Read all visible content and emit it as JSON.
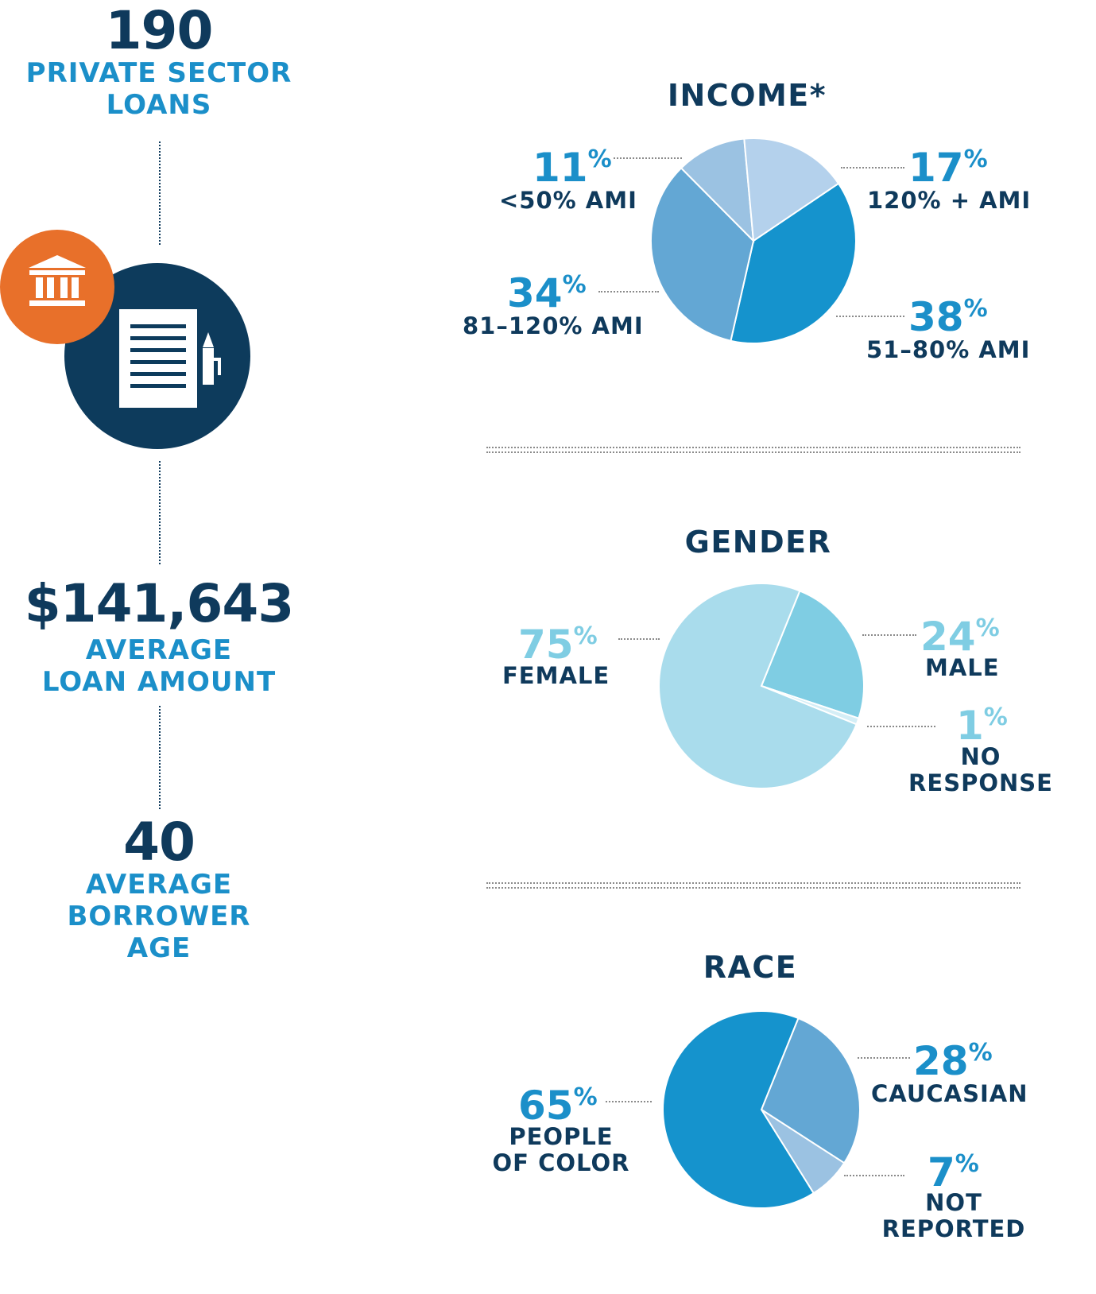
{
  "left": {
    "loans_count": "190",
    "loans_label_1": "PRIVATE SECTOR",
    "loans_label_2": "LOANS",
    "avg_loan": "$141,643",
    "avg_loan_label_1": "AVERAGE",
    "avg_loan_label_2": "LOAN AMOUNT",
    "avg_age": "40",
    "avg_age_label_1": "AVERAGE",
    "avg_age_label_2": "BORROWER",
    "avg_age_label_3": "AGE",
    "icons": [
      "bank-icon",
      "document-icon",
      "pen-icon"
    ]
  },
  "colors": {
    "navy": "#0f3a5c",
    "blue": "#1b8fc9",
    "orange": "#e8702a",
    "income_51_80": "#1593cd",
    "income_81_120": "#63a7d4",
    "income_lt50": "#9bc2e2",
    "income_120plus": "#b4d1ec",
    "female": "#a9dcec",
    "male": "#7fcde3",
    "no_response": "#d4eef6",
    "people_of_color": "#1593cd",
    "caucasian": "#63a7d4",
    "not_reported": "#9bc2e2"
  },
  "chart_data": [
    {
      "type": "pie",
      "title": "INCOME*",
      "categories": [
        "51–80% AMI",
        "81–120% AMI",
        "<50% AMI",
        "120% + AMI"
      ],
      "values": [
        38,
        34,
        11,
        17
      ],
      "labels": [
        {
          "pct": "38",
          "text": "51–80% AMI"
        },
        {
          "pct": "34",
          "text": "81–120% AMI"
        },
        {
          "pct": "11",
          "text": "<50% AMI"
        },
        {
          "pct": "17",
          "text": "120% + AMI"
        }
      ]
    },
    {
      "type": "pie",
      "title": "GENDER",
      "categories": [
        "MALE",
        "NO RESPONSE",
        "FEMALE"
      ],
      "values": [
        24,
        1,
        75
      ],
      "labels": [
        {
          "pct": "24",
          "text": "MALE"
        },
        {
          "pct": "1",
          "text_1": "NO",
          "text_2": "RESPONSE"
        },
        {
          "pct": "75",
          "text": "FEMALE"
        }
      ]
    },
    {
      "type": "pie",
      "title": "RACE",
      "categories": [
        "CAUCASIAN",
        "NOT REPORTED",
        "PEOPLE OF COLOR"
      ],
      "values": [
        28,
        7,
        65
      ],
      "labels": [
        {
          "pct": "28",
          "text": "CAUCASIAN"
        },
        {
          "pct": "7",
          "text_1": "NOT",
          "text_2": "REPORTED"
        },
        {
          "pct": "65",
          "text_1": "PEOPLE",
          "text_2": "OF COLOR"
        }
      ]
    }
  ]
}
